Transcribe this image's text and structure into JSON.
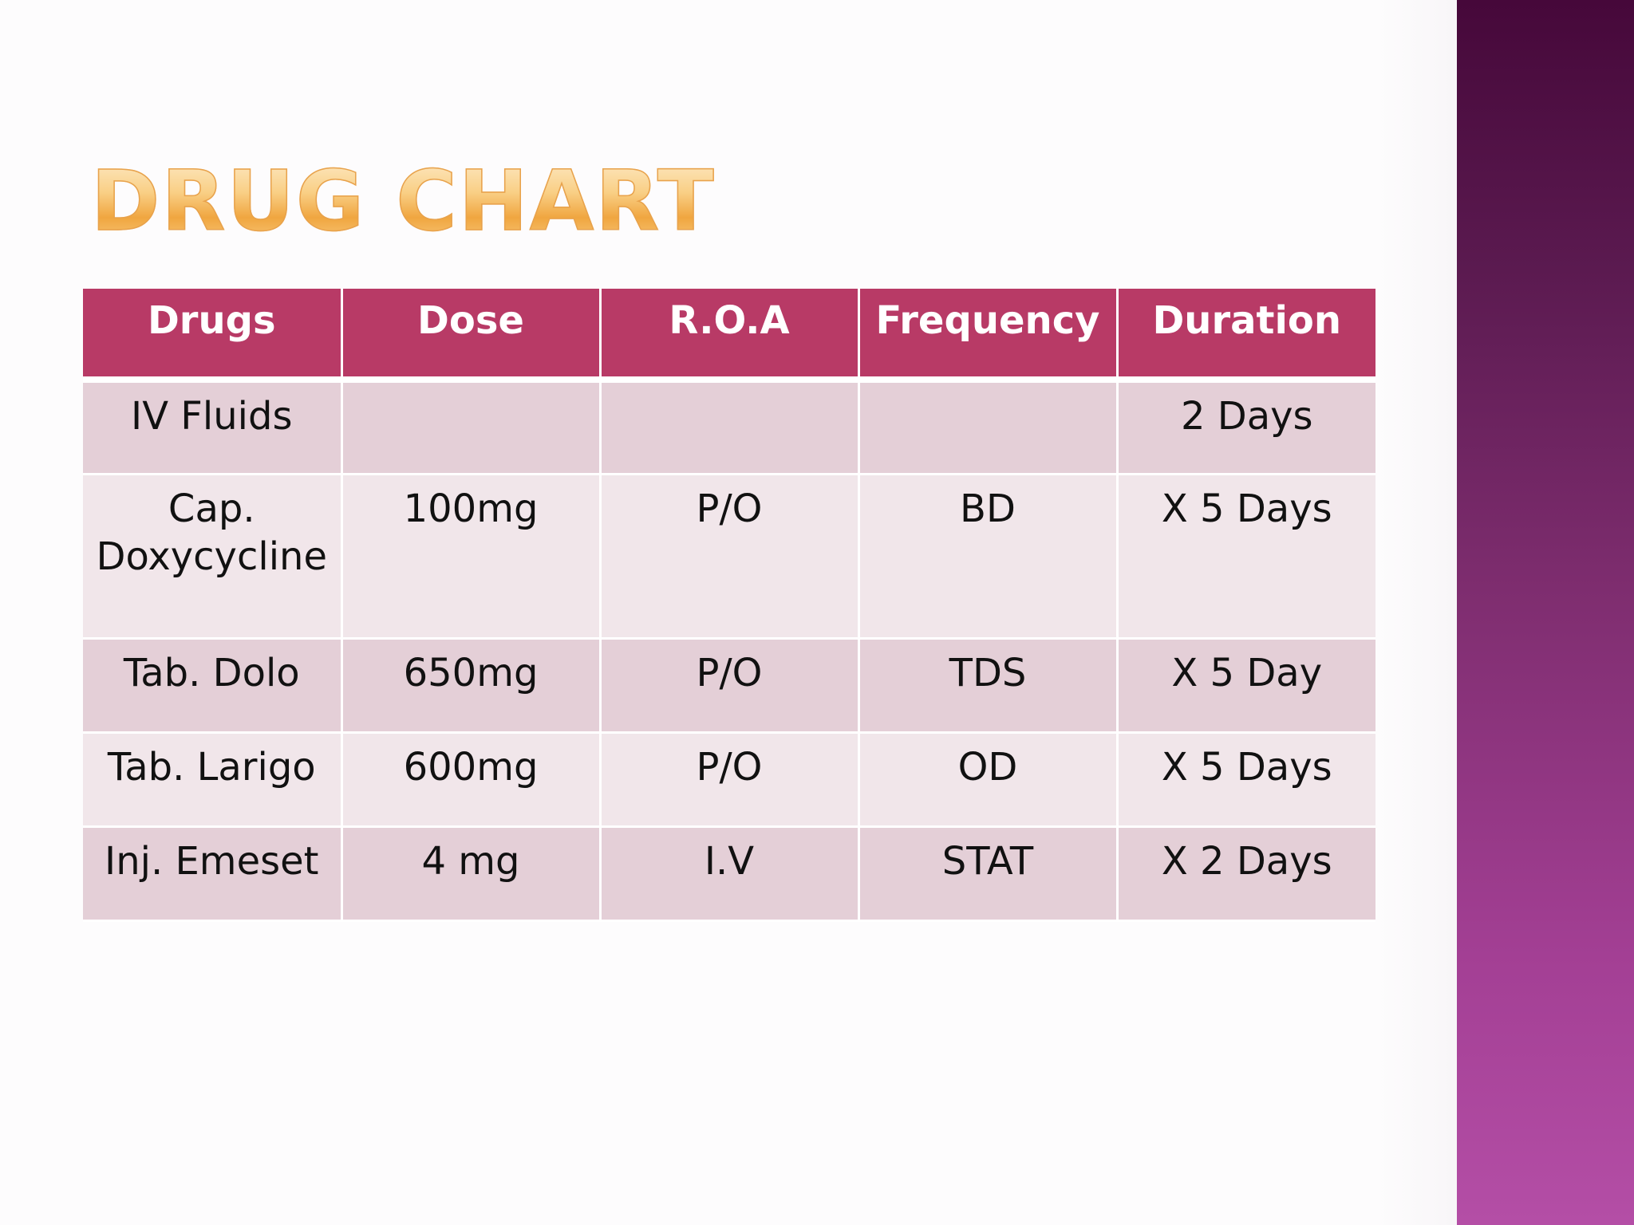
{
  "slide": {
    "title": "Drug Chart",
    "colors": {
      "header_bg": "#b83a66",
      "row_dark": "#e4cfd7",
      "row_light": "#f1e6ea",
      "title_gold": "#f4b45a",
      "side_band_top": "#46083a",
      "side_band_bottom": "#b44ea6"
    }
  },
  "table": {
    "headers": [
      "Drugs",
      "Dose",
      "R.O.A",
      "Frequency",
      "Duration"
    ],
    "rows": [
      [
        "IV Fluids",
        "",
        "",
        "",
        "2 Days"
      ],
      [
        "Cap. Doxycycline",
        "100mg",
        "P/O",
        "BD",
        "X 5 Days"
      ],
      [
        "Tab. Dolo",
        "650mg",
        "P/O",
        "TDS",
        "X 5 Day"
      ],
      [
        "Tab. Larigo",
        "600mg",
        "P/O",
        "OD",
        "X 5 Days"
      ],
      [
        "Inj. Emeset",
        "4 mg",
        "I.V",
        "STAT",
        "X 2 Days"
      ]
    ]
  }
}
